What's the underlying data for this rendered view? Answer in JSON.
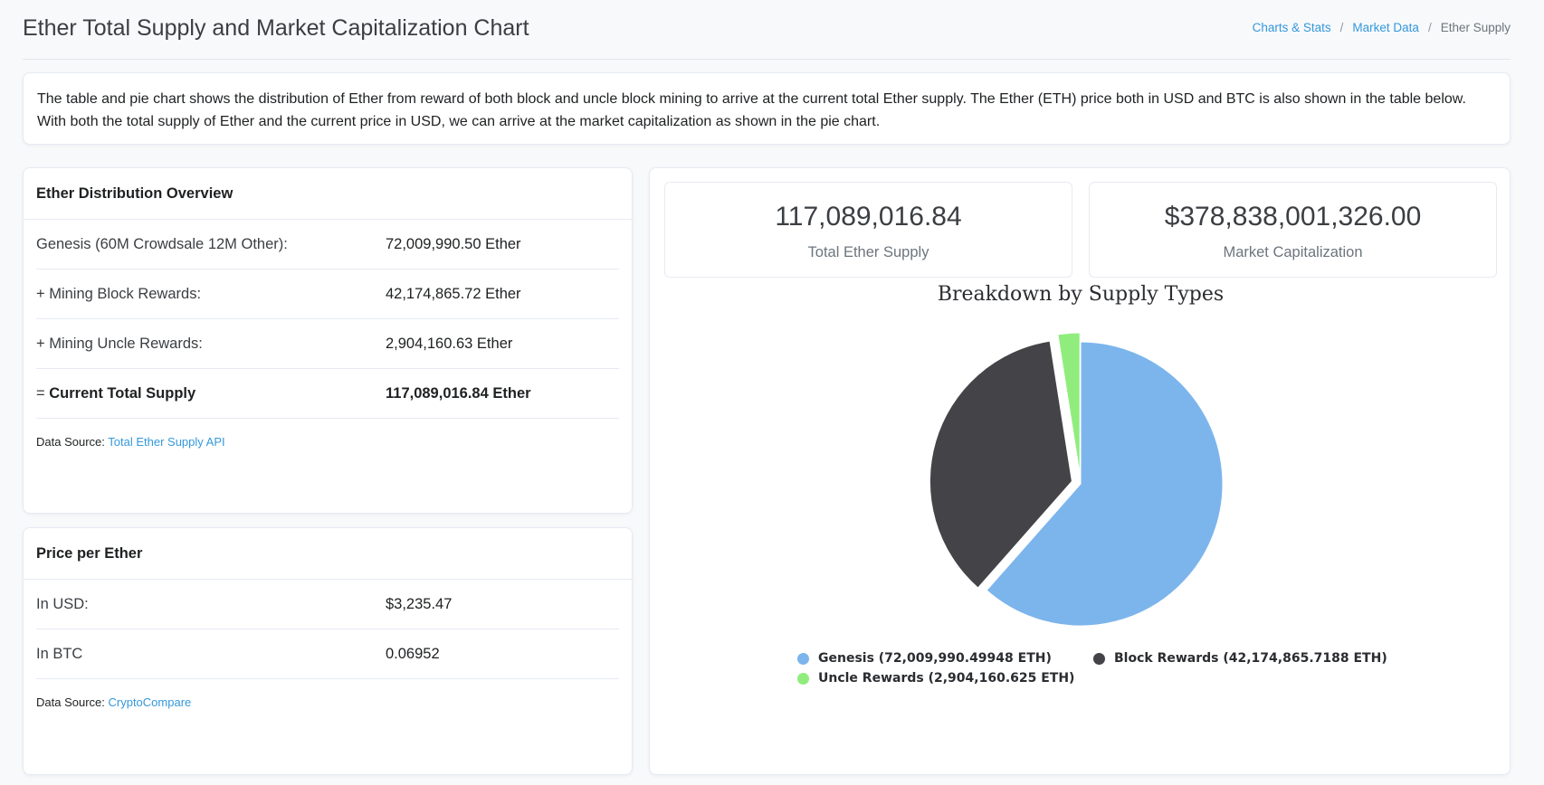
{
  "page": {
    "title": "Ether Total Supply and Market Capitalization Chart",
    "breadcrumb": [
      "Charts & Stats",
      "Market Data",
      "Ether Supply"
    ]
  },
  "intro": "The table and pie chart shows the distribution of Ether from reward of both block and uncle block mining to arrive at the current total Ether supply. The Ether (ETH) price both in USD and BTC is also shown in the table below. With both the total supply of Ether and the current price in USD, we can arrive at the market capitalization as shown in the pie chart.",
  "distribution": {
    "heading": "Ether Distribution Overview",
    "rows": [
      {
        "label": "Genesis (60M Crowdsale 12M Other):",
        "value": "72,009,990.50 Ether"
      },
      {
        "label": "+ Mining Block Rewards:",
        "value": "42,174,865.72 Ether"
      },
      {
        "label": "+ Mining Uncle Rewards:",
        "value": "2,904,160.63 Ether"
      }
    ],
    "total_prefix": "= ",
    "total_label": "Current Total Supply",
    "total_value": "117,089,016.84 Ether",
    "source_label": "Data Source:",
    "source_link": "Total Ether Supply API"
  },
  "price": {
    "heading": "Price per Ether",
    "rows": [
      {
        "label": "In USD:",
        "value": "$3,235.47"
      },
      {
        "label": "In BTC",
        "value": "0.06952"
      }
    ],
    "source_label": "Data Source:",
    "source_link": "CryptoCompare"
  },
  "stats": {
    "supply_value": "117,089,016.84",
    "supply_caption": "Total Ether Supply",
    "marketcap_value": "$378,838,001,326.00",
    "marketcap_caption": "Market Capitalization"
  },
  "colors": {
    "genesis": "#7cb5ec",
    "block": "#434348",
    "uncle": "#90ed7d"
  },
  "chart_data": {
    "type": "pie",
    "title": "Breakdown by Supply Types",
    "categories": [
      "Genesis",
      "Block Rewards",
      "Uncle Rewards"
    ],
    "values": [
      72009990.49948,
      42174865.7188,
      2904160.625
    ],
    "legend": [
      "Genesis (72,009,990.49948 ETH)",
      "Block Rewards (42,174,865.7188 ETH)",
      "Uncle Rewards (2,904,160.625 ETH)"
    ],
    "sliced": [
      false,
      true,
      true
    ],
    "legend_position": "bottom"
  }
}
